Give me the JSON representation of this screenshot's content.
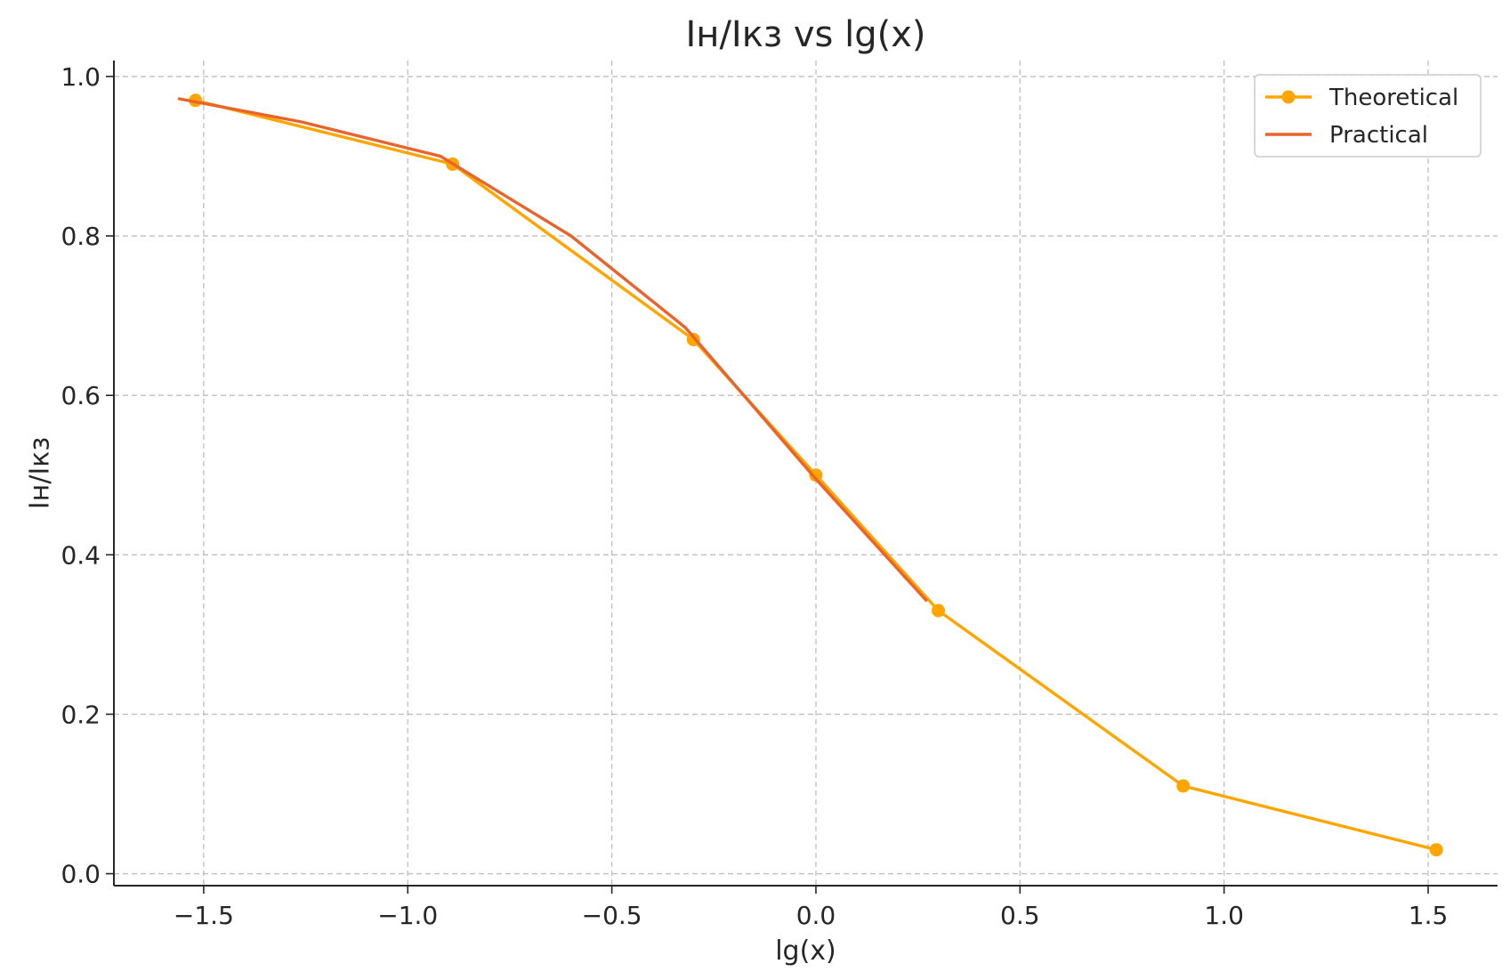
{
  "chart_data": {
    "type": "line",
    "title": "Iн/Iкз vs lg(x)",
    "xlabel": "lg(x)",
    "ylabel": "Iн/Iкз",
    "xlim": [
      -1.72,
      1.67
    ],
    "ylim": [
      -0.015,
      1.02
    ],
    "xticks": [
      -1.5,
      -1.0,
      -0.5,
      0.0,
      0.5,
      1.0,
      1.5
    ],
    "xtick_labels": [
      "−1.5",
      "−1.0",
      "−0.5",
      "0.0",
      "0.5",
      "1.0",
      "1.5"
    ],
    "yticks": [
      0.0,
      0.2,
      0.4,
      0.6,
      0.8,
      1.0
    ],
    "ytick_labels": [
      "0.0",
      "0.2",
      "0.4",
      "0.6",
      "0.8",
      "1.0"
    ],
    "grid": true,
    "legend_position": "top-right",
    "series": [
      {
        "name": "Theoretical",
        "color": "#FFA500",
        "marker": "circle",
        "x": [
          -1.52,
          -0.89,
          -0.3,
          0.0,
          0.3,
          0.9,
          1.52
        ],
        "y": [
          0.97,
          0.89,
          0.67,
          0.5,
          0.33,
          0.11,
          0.03
        ]
      },
      {
        "name": "Practical",
        "color": "#E8642C",
        "marker": "none",
        "x": [
          -1.56,
          -1.26,
          -0.92,
          -0.6,
          -0.32,
          0.0,
          0.27
        ],
        "y": [
          0.972,
          0.943,
          0.9,
          0.8,
          0.685,
          0.495,
          0.343
        ]
      }
    ]
  }
}
